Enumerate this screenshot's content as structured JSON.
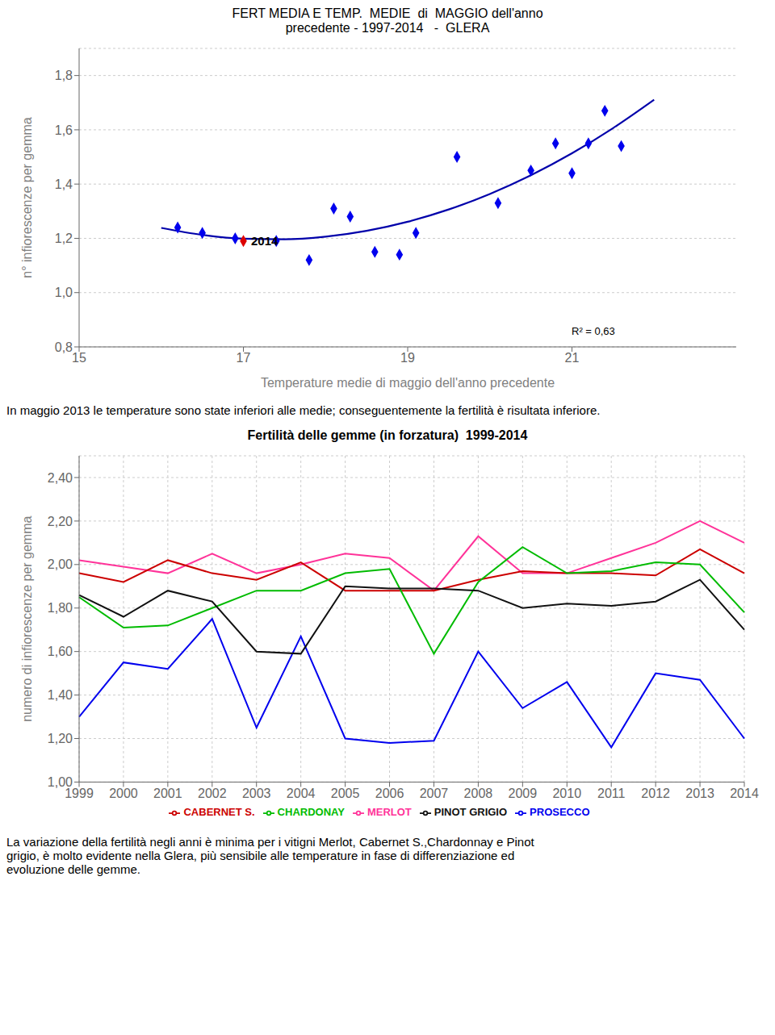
{
  "chart_data": [
    {
      "type": "scatter",
      "title": "FERT MEDIA E TEMP.  MEDIE  di  MAGGIO dell'anno",
      "subtitle": "precedente - 1997-2014   -  GLERA",
      "x_label": "Temperature medie di maggio dell'anno precedente",
      "y_label": "n° infiorescenze per gemma",
      "xlim": [
        15,
        23
      ],
      "ylim": [
        0.8,
        1.9
      ],
      "xticks": [
        15,
        17,
        19,
        21
      ],
      "yticks": [
        {
          "value": 0.8,
          "label": "0,8"
        },
        {
          "value": 1.0,
          "label": "1,0"
        },
        {
          "value": 1.2,
          "label": "1,2"
        },
        {
          "value": 1.4,
          "label": "1,4"
        },
        {
          "value": 1.6,
          "label": "1,6"
        },
        {
          "value": 1.8,
          "label": "1,8"
        }
      ],
      "grid": "y",
      "series": [
        {
          "type": "line",
          "color": "#0000AA",
          "line_style": "solid",
          "x": [
            16.0,
            16.5,
            17.0,
            17.5,
            18.0,
            18.5,
            19.0,
            19.5,
            20.0,
            20.5,
            21.0,
            21.5,
            22.0
          ],
          "values": [
            1.2385,
            1.2126,
            1.1986,
            1.1964,
            1.2061,
            1.2276,
            1.2611,
            1.3064,
            1.3635,
            1.4325,
            1.5134,
            1.6062,
            1.7108
          ]
        },
        {
          "type": "scatter",
          "color": "#0000EE",
          "marker": "diamond",
          "x": [
            16.2,
            16.5,
            16.9,
            17.4,
            17.8,
            18.1,
            18.3,
            18.6,
            18.9,
            19.1,
            19.6,
            20.1,
            20.5,
            20.8,
            21.0,
            21.2,
            21.4,
            21.6
          ],
          "values": [
            1.24,
            1.22,
            1.2,
            1.19,
            1.12,
            1.31,
            1.28,
            1.15,
            1.14,
            1.22,
            1.5,
            1.33,
            1.45,
            1.55,
            1.44,
            1.55,
            1.67,
            1.54
          ]
        },
        {
          "type": "scatter",
          "color": "#DD0000",
          "marker": "diamond",
          "label": "2014",
          "x": [
            17.0
          ],
          "values": [
            1.19
          ]
        }
      ],
      "annotations": [
        "R² = 0,63"
      ],
      "caption": "In maggio 2013 le temperature sono state inferiori alle medie; conseguentemente la fertilità è risultata inferiore."
    },
    {
      "type": "line",
      "title": "Fertilità delle gemme (in forzatura)  1999-2014",
      "y_label": "numero di infiorescenze per gemma",
      "categories": [
        1999,
        2000,
        2001,
        2002,
        2003,
        2004,
        2005,
        2006,
        2007,
        2008,
        2009,
        2010,
        2011,
        2012,
        2013,
        2014
      ],
      "ylim": [
        1.0,
        2.5
      ],
      "yticks": [
        {
          "value": 1.0,
          "label": "1,00"
        },
        {
          "value": 1.2,
          "label": "1,20"
        },
        {
          "value": 1.4,
          "label": "1,40"
        },
        {
          "value": 1.6,
          "label": "1,60"
        },
        {
          "value": 1.8,
          "label": "1,80"
        },
        {
          "value": 2.0,
          "label": "2,00"
        },
        {
          "value": 2.2,
          "label": "2,20"
        },
        {
          "value": 2.4,
          "label": "2,40"
        }
      ],
      "grid": true,
      "legend": "bottom",
      "series": [
        {
          "name": "PROSECCO",
          "color": "#0000EE",
          "values": [
            1.3,
            1.55,
            1.52,
            1.75,
            1.25,
            1.67,
            1.2,
            1.18,
            1.19,
            1.6,
            1.34,
            1.46,
            1.16,
            1.5,
            1.47,
            1.2
          ]
        },
        {
          "name": "MERLOT",
          "color": "#FF3399",
          "values": [
            2.02,
            1.99,
            1.96,
            2.05,
            1.96,
            2.0,
            2.05,
            2.03,
            1.88,
            2.13,
            1.96,
            1.96,
            2.03,
            2.1,
            2.2,
            2.1
          ]
        },
        {
          "name": "CABERNET S.",
          "color": "#CC0000",
          "values": [
            1.96,
            1.92,
            2.02,
            1.96,
            1.93,
            2.01,
            1.88,
            1.88,
            1.88,
            1.93,
            1.97,
            1.96,
            1.96,
            1.95,
            2.07,
            1.96
          ]
        },
        {
          "name": "CHARDONAY",
          "color": "#00BB00",
          "values": [
            1.85,
            1.71,
            1.72,
            1.8,
            1.88,
            1.88,
            1.96,
            1.98,
            1.59,
            1.92,
            2.08,
            1.96,
            1.97,
            2.01,
            2.0,
            1.78
          ]
        },
        {
          "name": "PINOT GRIGIO",
          "color": "#111111",
          "values": [
            1.86,
            1.76,
            1.88,
            1.83,
            1.6,
            1.59,
            1.9,
            1.89,
            1.89,
            1.88,
            1.8,
            1.82,
            1.81,
            1.83,
            1.93,
            1.7
          ]
        }
      ],
      "caption": "La variazione della fertilità negli anni è minima per i vitigni Merlot, Cabernet S.,Chardonnay e Pinot\ngrigio, è molto evidente nella Glera, più sensibile alle temperature in fase di differenziazione ed\nevoluzione delle gemme."
    }
  ]
}
